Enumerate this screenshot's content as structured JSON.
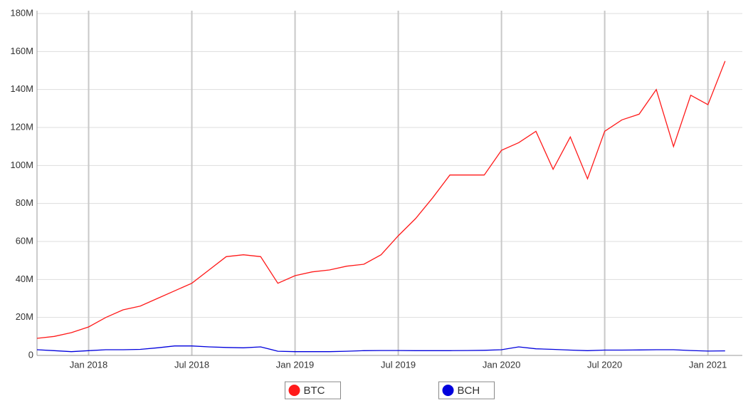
{
  "chart_data": {
    "type": "line",
    "x": [
      "2017-10",
      "2017-11",
      "2017-12",
      "2018-01",
      "2018-02",
      "2018-03",
      "2018-04",
      "2018-05",
      "2018-06",
      "2018-07",
      "2018-08",
      "2018-09",
      "2018-10",
      "2018-11",
      "2018-12",
      "2019-01",
      "2019-02",
      "2019-03",
      "2019-04",
      "2019-05",
      "2019-06",
      "2019-07",
      "2019-08",
      "2019-09",
      "2019-10",
      "2019-11",
      "2019-12",
      "2020-01",
      "2020-02",
      "2020-03",
      "2020-04",
      "2020-05",
      "2020-06",
      "2020-07",
      "2020-08",
      "2020-09",
      "2020-10",
      "2020-11",
      "2020-12",
      "2021-01",
      "2021-02"
    ],
    "series": [
      {
        "name": "BTC",
        "color": "#ff1a1a",
        "values": [
          9000000,
          10000000,
          12000000,
          15000000,
          20000000,
          24000000,
          26000000,
          30000000,
          34000000,
          38000000,
          45000000,
          52000000,
          53000000,
          52000000,
          38000000,
          42000000,
          44000000,
          45000000,
          47000000,
          48000000,
          53000000,
          63000000,
          72000000,
          83000000,
          95000000,
          95000000,
          95000000,
          108000000,
          112000000,
          118000000,
          98000000,
          115000000,
          93000000,
          118000000,
          124000000,
          127000000,
          140000000,
          110000000,
          137000000,
          132000000,
          155000000
        ]
      },
      {
        "name": "BCH",
        "color": "#0000dd",
        "values": [
          3000000,
          2500000,
          2000000,
          2500000,
          3000000,
          3000000,
          3200000,
          4000000,
          5000000,
          5000000,
          4500000,
          4200000,
          4000000,
          4500000,
          2200000,
          2000000,
          2000000,
          2000000,
          2200000,
          2500000,
          2600000,
          2600000,
          2500000,
          2500000,
          2500000,
          2600000,
          2700000,
          3000000,
          4500000,
          3500000,
          3200000,
          2800000,
          2500000,
          2800000,
          2800000,
          2900000,
          3000000,
          3000000,
          2600000,
          2300000,
          2400000
        ]
      }
    ],
    "xlim": [
      "2017-10",
      "2021-03"
    ],
    "xticks": [
      {
        "value": "2018-01",
        "label": "Jan 2018"
      },
      {
        "value": "2018-07",
        "label": "Jul 2018"
      },
      {
        "value": "2019-01",
        "label": "Jan 2019"
      },
      {
        "value": "2019-07",
        "label": "Jul 2019"
      },
      {
        "value": "2020-01",
        "label": "Jan 2020"
      },
      {
        "value": "2020-07",
        "label": "Jul 2020"
      },
      {
        "value": "2021-01",
        "label": "Jan 2021"
      }
    ],
    "ylim": [
      0,
      180000000
    ],
    "yticks": [
      0,
      {
        "value": 20000000,
        "label": "20M"
      },
      {
        "value": 40000000,
        "label": "40M"
      },
      {
        "value": 60000000,
        "label": "60M"
      },
      {
        "value": 80000000,
        "label": "80M"
      },
      {
        "value": 100000000,
        "label": "100M"
      },
      {
        "value": 120000000,
        "label": "120M"
      },
      {
        "value": 140000000,
        "label": "140M"
      },
      {
        "value": 160000000,
        "label": "160M"
      },
      {
        "value": 180000000,
        "label": "180M"
      }
    ],
    "grid": true,
    "legend": "bottom"
  }
}
